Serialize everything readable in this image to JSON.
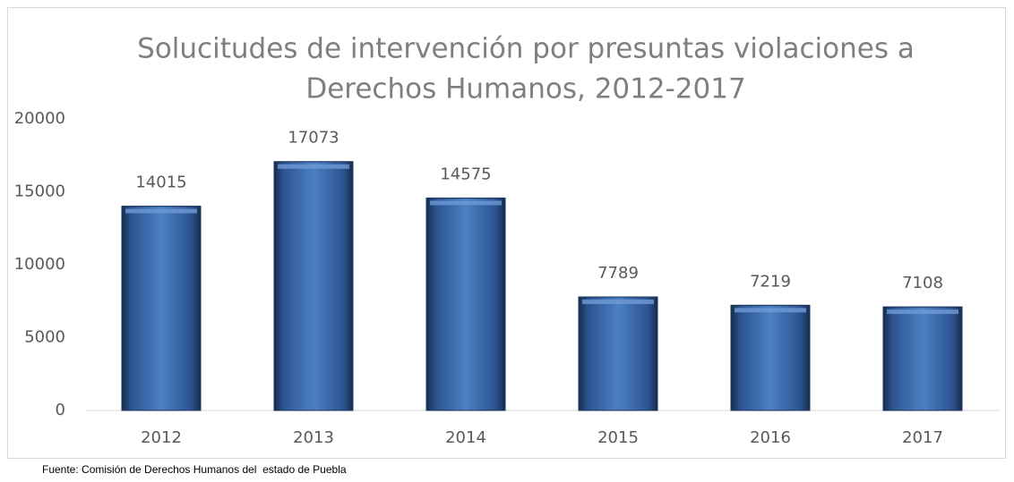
{
  "chart_data": {
    "type": "bar",
    "title": [
      "Solucitudes de intervención por presuntas violaciones a",
      "Derechos Humanos, 2012-2017"
    ],
    "categories": [
      "2012",
      "2013",
      "2014",
      "2015",
      "2016",
      "2017"
    ],
    "values": [
      14015,
      17073,
      14575,
      7789,
      7219,
      7108
    ],
    "color": "#3a6aa8",
    "ylim": [
      0,
      20000
    ],
    "yticks": [
      0,
      5000,
      10000,
      15000,
      20000
    ],
    "grid": false,
    "footnote": "Fuente: Comisión de Derechos Humanos del  estado de Puebla"
  }
}
